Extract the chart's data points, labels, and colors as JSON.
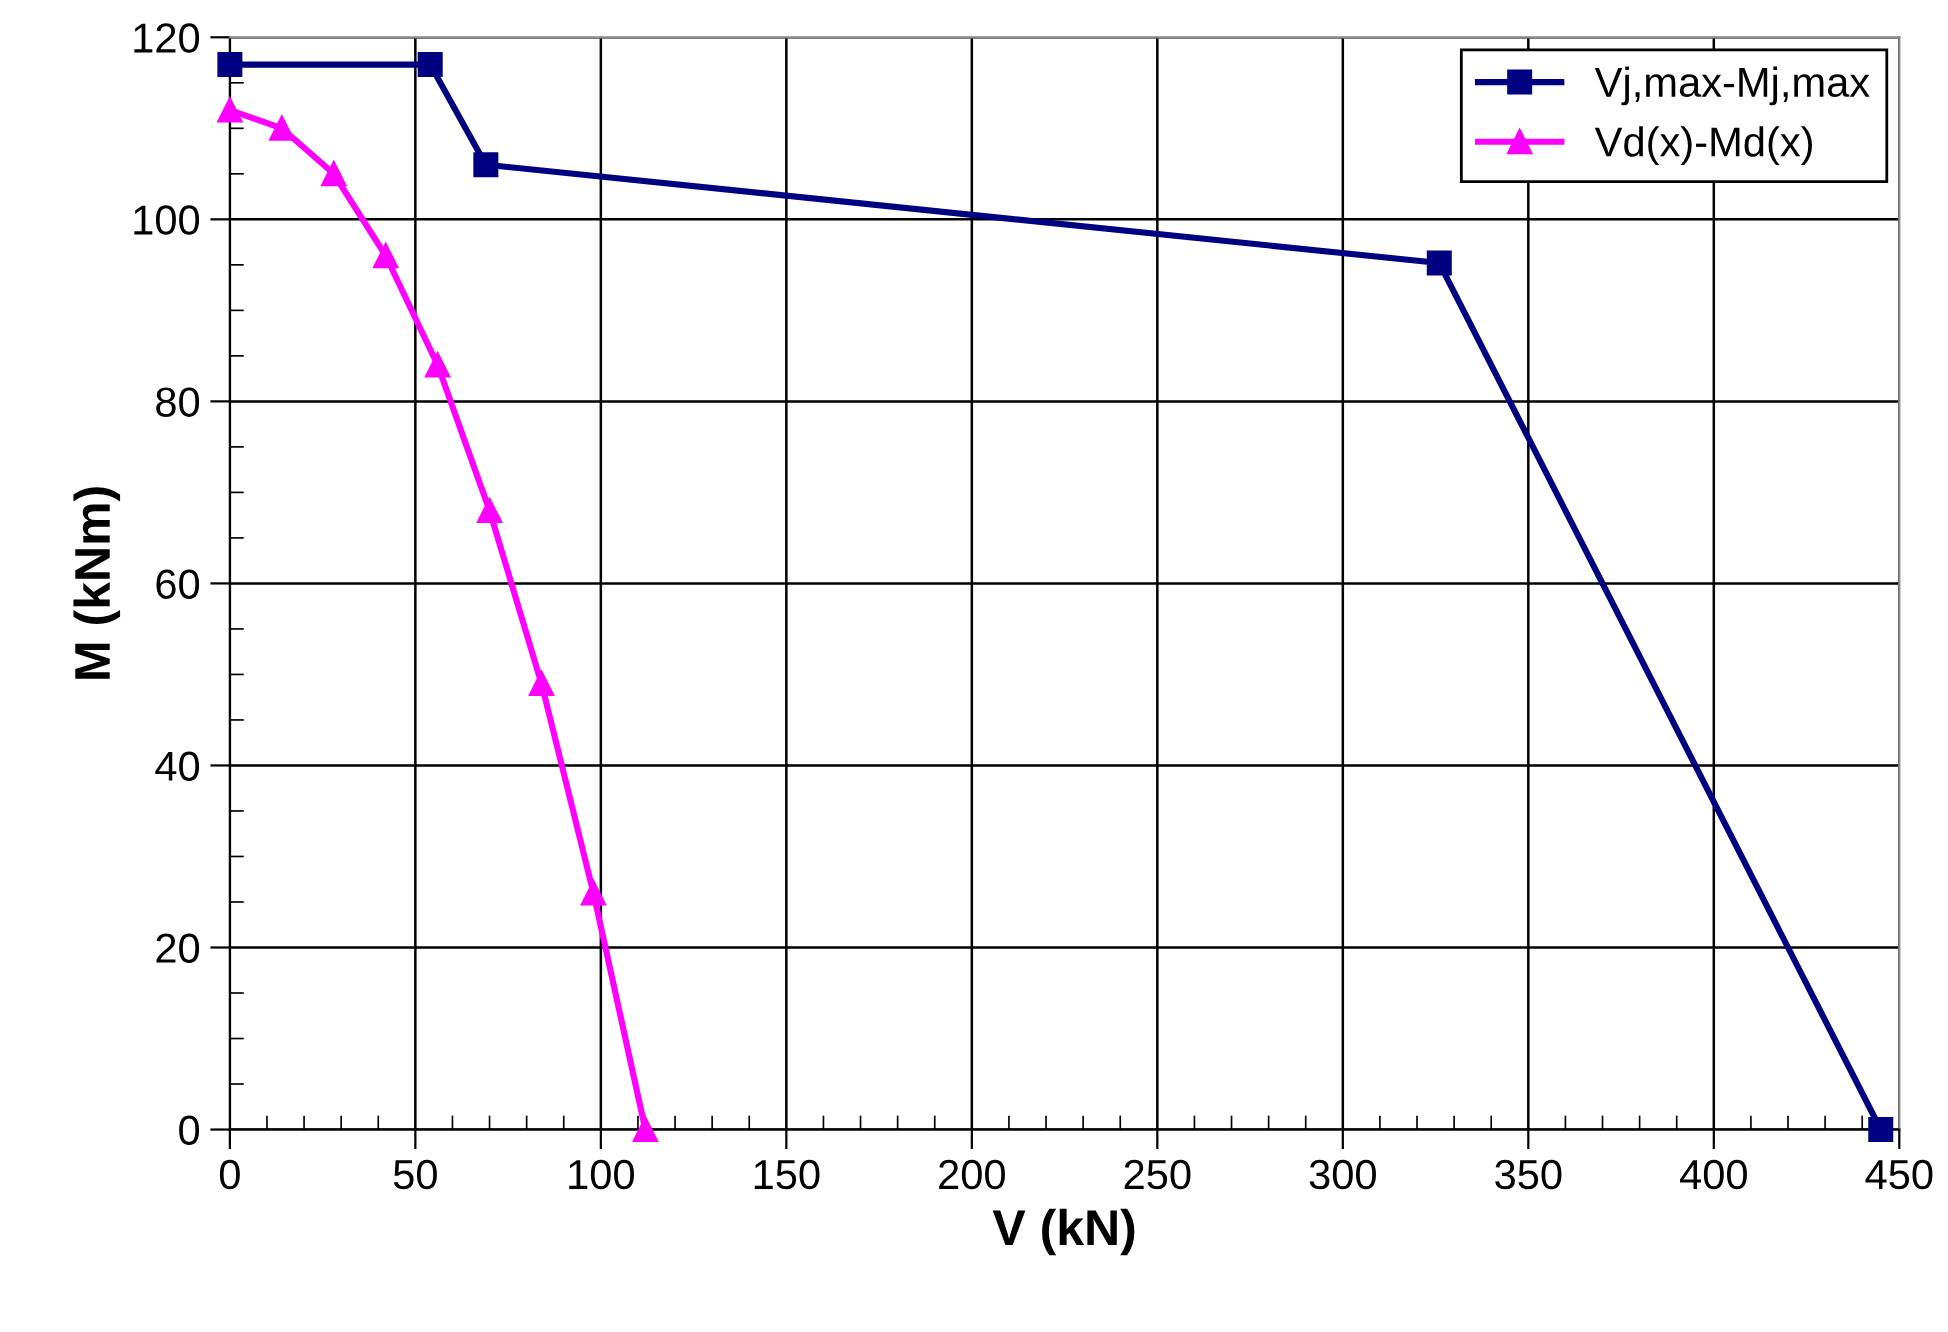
{
  "chart_data": {
    "type": "line",
    "xlabel": "V (kN)",
    "ylabel": "M (kNm)",
    "series": [
      {
        "name": "Vj,max-Mj,max",
        "color": "#000080",
        "marker": "square",
        "x": [
          0,
          54,
          69,
          326,
          445
        ],
        "values": [
          117,
          117,
          106,
          95.2,
          0
        ]
      },
      {
        "name": "Vd(x)-Md(x)",
        "color": "#ff00ff",
        "marker": "triangle",
        "x": [
          0,
          14,
          28,
          42,
          56,
          70,
          84,
          98,
          112
        ],
        "values": [
          112,
          110,
          105,
          96,
          84,
          68,
          49,
          26,
          0
        ]
      }
    ],
    "xlim": [
      0,
      450
    ],
    "xticks": [
      0,
      50,
      100,
      150,
      200,
      250,
      300,
      350,
      400,
      450
    ],
    "ylim": [
      0,
      120
    ],
    "yticks": [
      0,
      20,
      40,
      60,
      80,
      100,
      120
    ],
    "grid": true,
    "legend": "top right",
    "line_style": "solid"
  }
}
